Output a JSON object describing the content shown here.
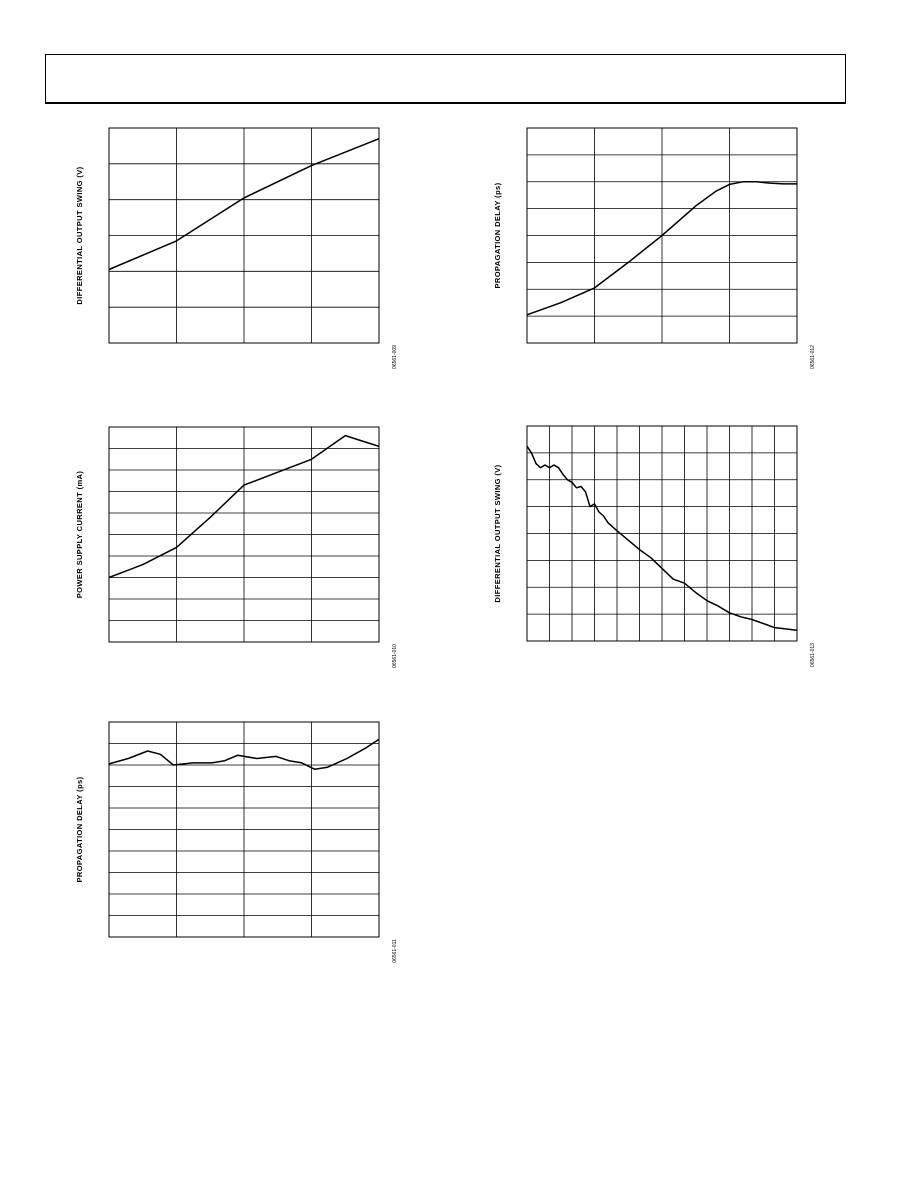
{
  "header": {},
  "chart_data": [
    {
      "id": "c1",
      "type": "line",
      "ylabel": "DIFFERENTIAL OUTPUT SWING (V)",
      "figure_id": "06561-009",
      "xlim": [
        0,
        4
      ],
      "ylim": [
        0,
        6
      ],
      "x_grid_count": 4,
      "y_grid_count": 6,
      "series": [
        {
          "x": [
            0,
            1,
            2,
            3,
            4
          ],
          "y": [
            2.05,
            2.85,
            4.05,
            4.95,
            5.7
          ]
        }
      ]
    },
    {
      "id": "c2",
      "type": "line",
      "ylabel": "PROPAGATION DELAY (ps)",
      "figure_id": "06561-012",
      "xlim": [
        0,
        4
      ],
      "ylim": [
        0,
        8
      ],
      "x_grid_count": 4,
      "y_grid_count": 8,
      "series": [
        {
          "x": [
            0,
            0.5,
            1,
            1.5,
            2,
            2.5,
            2.8,
            3,
            3.2,
            3.4,
            3.6,
            3.8,
            4
          ],
          "y": [
            1.05,
            1.5,
            2.05,
            3.0,
            4.0,
            5.1,
            5.65,
            5.9,
            6.0,
            6.0,
            5.95,
            5.92,
            5.92
          ]
        }
      ]
    },
    {
      "id": "c3",
      "type": "line",
      "ylabel": "POWER SUPPLY CURRENT (mA)",
      "figure_id": "06561-010",
      "xlim": [
        0,
        4
      ],
      "ylim": [
        0,
        10
      ],
      "x_grid_count": 4,
      "y_grid_count": 10,
      "series": [
        {
          "x": [
            0,
            0.5,
            1,
            1.5,
            2,
            2.5,
            3,
            3.5,
            4
          ],
          "y": [
            3.0,
            3.6,
            4.4,
            5.8,
            7.3,
            7.9,
            8.5,
            9.6,
            9.1
          ]
        }
      ]
    },
    {
      "id": "c4",
      "type": "line",
      "ylabel": "DIFFERENTIAL OUTPUT SWING (V)",
      "figure_id": "06561-013",
      "xlim": [
        0,
        12
      ],
      "ylim": [
        0,
        8
      ],
      "x_grid_count": 12,
      "y_grid_count": 8,
      "series": [
        {
          "x": [
            0,
            0.2,
            0.4,
            0.6,
            0.8,
            1.0,
            1.2,
            1.4,
            1.6,
            1.8,
            2.0,
            2.2,
            2.4,
            2.6,
            2.8,
            3.0,
            3.2,
            3.4,
            3.6,
            3.8,
            4.0,
            4.5,
            5.0,
            5.5,
            6.0,
            6.5,
            7.0,
            7.5,
            8.0,
            8.5,
            9.0,
            9.5,
            10.0,
            10.5,
            11.0,
            11.5,
            11.8,
            12.0
          ],
          "y": [
            7.25,
            7.0,
            6.6,
            6.45,
            6.55,
            6.45,
            6.55,
            6.45,
            6.2,
            6.0,
            5.9,
            5.7,
            5.75,
            5.55,
            5.0,
            5.1,
            4.8,
            4.65,
            4.4,
            4.25,
            4.1,
            3.75,
            3.4,
            3.1,
            2.7,
            2.3,
            2.15,
            1.8,
            1.5,
            1.3,
            1.05,
            0.9,
            0.8,
            0.65,
            0.5,
            0.45,
            0.42,
            0.4
          ]
        }
      ]
    },
    {
      "id": "c5",
      "type": "line",
      "ylabel": "PROPAGATION DELAY (ps)",
      "figure_id": "06561-011",
      "xlim": [
        0,
        4.2
      ],
      "ylim": [
        0,
        10
      ],
      "x_grid_count": 4,
      "y_grid_count": 10,
      "series": [
        {
          "x": [
            0,
            0.3,
            0.6,
            0.8,
            1.0,
            1.3,
            1.6,
            1.8,
            2.0,
            2.3,
            2.6,
            2.8,
            3.0,
            3.2,
            3.4,
            3.7,
            4.0,
            4.2
          ],
          "y": [
            8.05,
            8.3,
            8.65,
            8.5,
            8.0,
            8.1,
            8.1,
            8.2,
            8.45,
            8.3,
            8.4,
            8.2,
            8.1,
            7.8,
            7.9,
            8.3,
            8.8,
            9.2
          ]
        }
      ]
    }
  ]
}
